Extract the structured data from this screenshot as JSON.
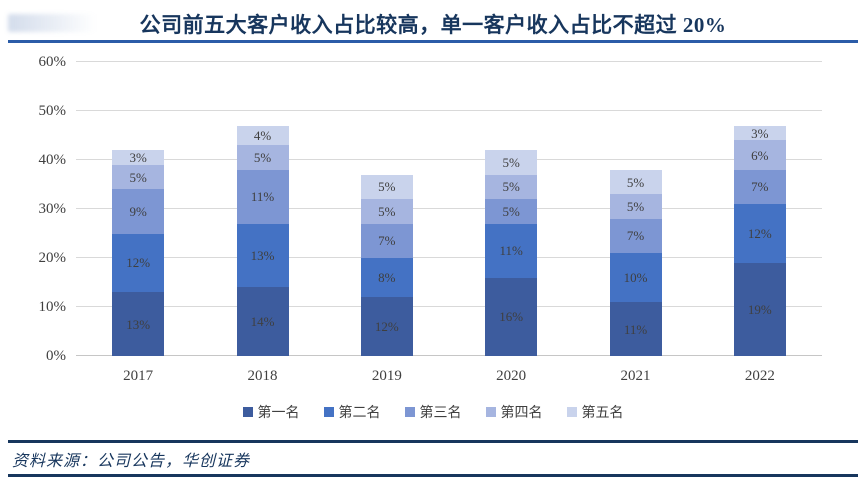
{
  "title": "公司前五大客户收入占比较高，单一客户收入占比不超过 20%",
  "source_note": "资料来源：公司公告，华创证券",
  "colors": {
    "title": "#17365D",
    "title_rule": "#2B5CA8",
    "source_rule": "#17365D",
    "gridline": "#D9D9D9",
    "axis_label": "#404040",
    "value_label": "#3F3F3F",
    "series": [
      "#3D5C9E",
      "#4472C4",
      "#7D96D3",
      "#A6B5E0",
      "#C9D3EC"
    ]
  },
  "chart_data": {
    "type": "bar",
    "stacked": true,
    "title": "公司前五大客户收入占比较高，单一客户收入占比不超过 20%",
    "categories": [
      "2017",
      "2018",
      "2019",
      "2020",
      "2021",
      "2022"
    ],
    "series": [
      {
        "name": "第一名",
        "values": [
          13,
          14,
          12,
          16,
          11,
          19
        ]
      },
      {
        "name": "第二名",
        "values": [
          12,
          13,
          8,
          11,
          10,
          12
        ]
      },
      {
        "name": "第三名",
        "values": [
          9,
          11,
          7,
          5,
          7,
          7
        ]
      },
      {
        "name": "第四名",
        "values": [
          5,
          5,
          5,
          5,
          5,
          6
        ]
      },
      {
        "name": "第五名",
        "values": [
          3,
          4,
          5,
          5,
          5,
          3
        ]
      }
    ],
    "totals": [
      42,
      47,
      37,
      42,
      38,
      47
    ],
    "value_label_format": "{value}%",
    "yticks": [
      "0%",
      "10%",
      "20%",
      "30%",
      "40%",
      "50%",
      "60%"
    ],
    "ylim": [
      0,
      60
    ],
    "xlabel": "",
    "ylabel": "",
    "grid": true,
    "legend_position": "bottom"
  }
}
